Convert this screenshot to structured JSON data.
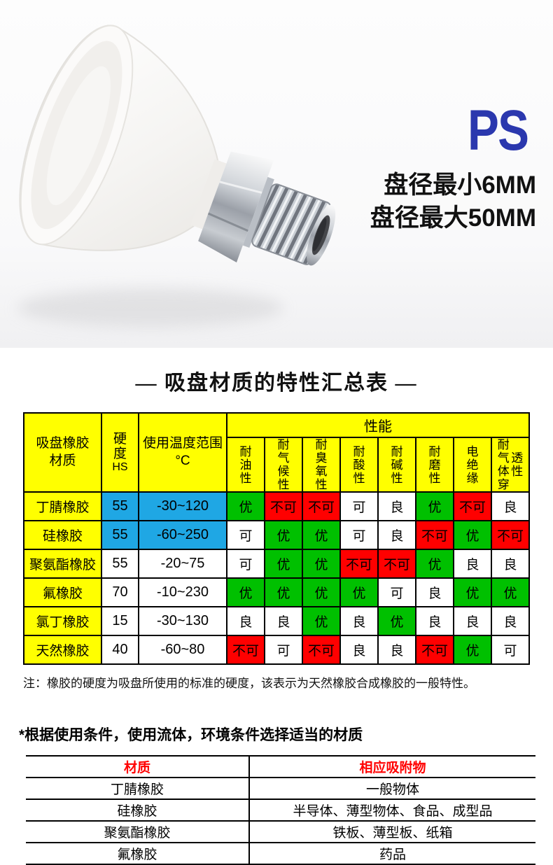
{
  "colors": {
    "accent_blue": "#2B38AE",
    "table_yellow": "#FFFF00",
    "table_blue": "#1FA7E4",
    "selection_header_red": "#FF0000"
  },
  "hero": {
    "product_code": "PS",
    "spec_lines": [
      "盘径最小6MM",
      "盘径最大50MM"
    ]
  },
  "summary": {
    "title": "— 吸盘材质的特性汇总表 —",
    "note": "注：橡胶的硬度为吸盘所使用的标准的硬度，该表示为天然橡胶合成橡胶的一般特性。"
  },
  "materials_table": {
    "header": {
      "material_lines": [
        "吸盘橡胶",
        "材质"
      ],
      "hardness_label": "硬度",
      "hardness_unit": "HS",
      "temp_lines": [
        "使用温度范围",
        "°C"
      ],
      "performance_label": "性能",
      "perf_columns": [
        "耐油性",
        "耐气候性",
        "耐臭氧性",
        "耐酸性",
        "耐碱性",
        "耐磨性",
        "电绝缘",
        "耐气体穿透性"
      ]
    },
    "rating_colors": {
      "优": "#00C000",
      "良": "#FFFFFF",
      "可": "#FFFFFF",
      "不可": "#FF0000"
    },
    "rows": [
      {
        "material": "丁腈橡胶",
        "hardness": "55",
        "temp": "-30~120",
        "highlight": true,
        "ratings": [
          "优",
          "不可",
          "不可",
          "可",
          "良",
          "优",
          "不可",
          "良"
        ]
      },
      {
        "material": "硅橡胶",
        "hardness": "55",
        "temp": "-60~250",
        "highlight": true,
        "ratings": [
          "可",
          "优",
          "优",
          "可",
          "良",
          "不可",
          "优",
          "不可"
        ]
      },
      {
        "material": "聚氨酯橡胶",
        "hardness": "55",
        "temp": "-20~75",
        "highlight": false,
        "ratings": [
          "可",
          "优",
          "优",
          "不可",
          "不可",
          "优",
          "良",
          "良"
        ]
      },
      {
        "material": "氟橡胶",
        "hardness": "70",
        "temp": "-10~230",
        "highlight": false,
        "ratings": [
          "优",
          "优",
          "优",
          "优",
          "可",
          "良",
          "优",
          "优"
        ]
      },
      {
        "material": "氯丁橡胶",
        "hardness": "15",
        "temp": "-30~130",
        "highlight": false,
        "ratings": [
          "良",
          "良",
          "优",
          "良",
          "优",
          "良",
          "良",
          "良"
        ]
      },
      {
        "material": "天然橡胶",
        "hardness": "40",
        "temp": "-60~80",
        "highlight": false,
        "ratings": [
          "不可",
          "可",
          "不可",
          "良",
          "良",
          "不可",
          "优",
          "可"
        ]
      }
    ]
  },
  "selection": {
    "heading": "*根据使用条件，使用流体，环境条件选择适当的材质",
    "table": {
      "headers": [
        "材质",
        "相应吸附物"
      ],
      "rows": [
        [
          "丁腈橡胶",
          "一般物体"
        ],
        [
          "硅橡胶",
          "半导体、薄型物体、食品、成型品"
        ],
        [
          "聚氨酯橡胶",
          "铁板、薄型板、纸箱"
        ],
        [
          "氟橡胶",
          "药品"
        ]
      ]
    }
  }
}
